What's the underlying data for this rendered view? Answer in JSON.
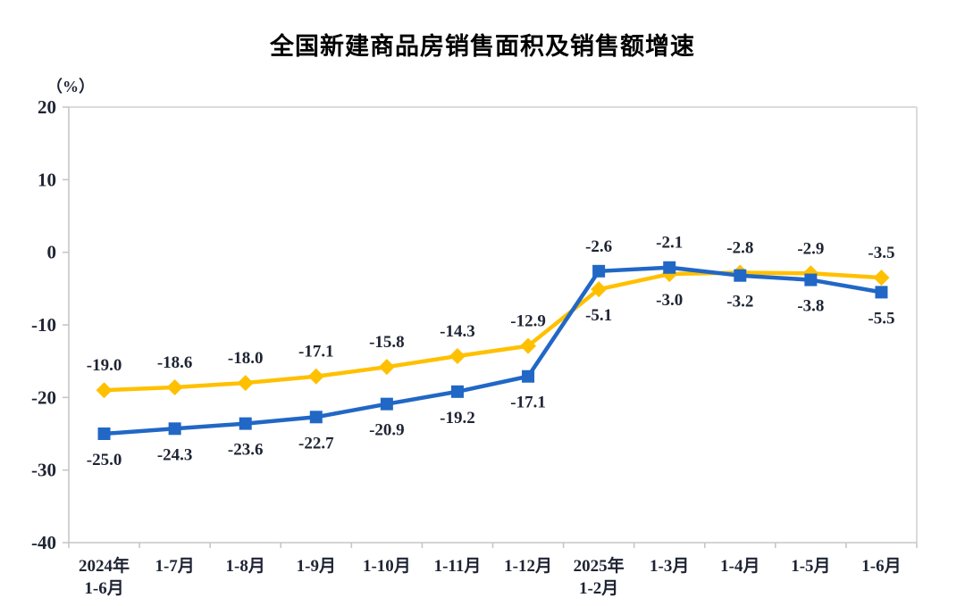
{
  "title": "全国新建商品房销售面积及销售额增速",
  "y_axis_unit": "（%）",
  "chart_data": {
    "type": "line",
    "title": "全国新建商品房销售面积及销售额增速",
    "categories": [
      "2024年\n1-6月",
      "1-7月",
      "1-8月",
      "1-9月",
      "1-10月",
      "1-11月",
      "1-12月",
      "2025年\n1-2月",
      "1-3月",
      "1-4月",
      "1-5月",
      "1-6月"
    ],
    "series": [
      {
        "id": "sales-area",
        "name": "销售面积",
        "color": "#FFC000",
        "marker": "diamond",
        "values": [
          -19.0,
          -18.6,
          -18.0,
          -17.1,
          -15.8,
          -14.3,
          -12.9,
          -5.1,
          -3.0,
          -2.8,
          -2.9,
          -3.5
        ]
      },
      {
        "id": "sales-amount",
        "name": "销售额",
        "color": "#2167C5",
        "marker": "square",
        "values": [
          -25.0,
          -24.3,
          -23.6,
          -22.7,
          -20.9,
          -19.2,
          -17.1,
          -2.6,
          -2.1,
          -3.2,
          -3.8,
          -5.5
        ]
      }
    ],
    "ylim": [
      -40,
      20
    ],
    "y_ticks": [
      20,
      10,
      0,
      -10,
      -20,
      -30,
      -40
    ],
    "grid": false,
    "legend_position": "none",
    "data_labels": true,
    "axis_color": "#C6C6C6",
    "border_color": "#DBDBDB",
    "label_color": "#1E2433"
  }
}
